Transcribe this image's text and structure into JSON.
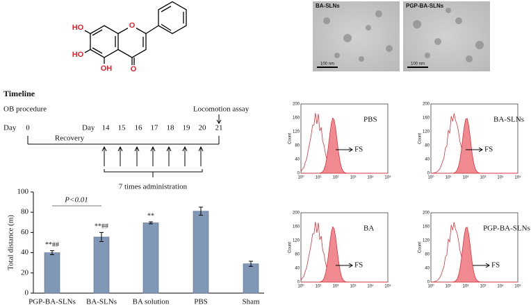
{
  "molecule": {
    "atoms": [
      "HO",
      "HO",
      "OH",
      "O",
      "O"
    ]
  },
  "micrographs": [
    {
      "label": "BA-SLNs",
      "scale": "100 nm"
    },
    {
      "label": "PGP-BA-SLNs",
      "scale": "100 nm"
    }
  ],
  "timeline": {
    "title": "Timeline",
    "start_event": "OB procedure",
    "day_label": "Day",
    "start_day": "0",
    "phase": "Recovery",
    "second_day_label": "Day",
    "days": [
      "14",
      "15",
      "16",
      "17",
      "18",
      "19",
      "20",
      "21"
    ],
    "end_event": "Locomotion assay",
    "treatment": "7 times administration"
  },
  "chart_data": {
    "type": "bar",
    "y_label": "Total distance (m)",
    "categories": [
      "PGP-BA-SLNs",
      "BA-SLNs",
      "BA solution",
      "PBS",
      "Sham"
    ],
    "values": [
      40,
      55.5,
      69.5,
      81,
      29
    ],
    "errors": [
      2,
      4.5,
      1,
      4,
      2.5
    ],
    "annotations": [
      "**##",
      "**##",
      "**",
      null,
      null
    ],
    "significance": "P<0.01",
    "color": "#8197b6",
    "ylim": [
      0,
      100
    ],
    "yticks": [
      0,
      20,
      40,
      60,
      80,
      100
    ]
  },
  "histograms": {
    "y_label": "Count",
    "yticks": [
      "0",
      "40",
      "80",
      "120",
      "160",
      "200"
    ],
    "xticks": [
      "10⁰",
      "10¹",
      "10²",
      "10³",
      "10⁴",
      "10⁵"
    ],
    "marker": "FS",
    "panels": [
      "PBS",
      "BA-SLNs",
      "BA",
      "PGP-BA-SLNs"
    ]
  }
}
